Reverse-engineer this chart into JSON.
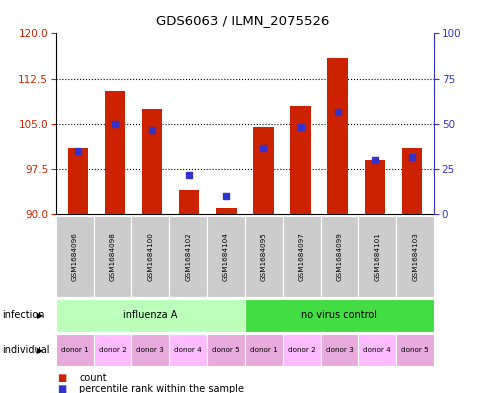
{
  "title": "GDS6063 / ILMN_2075526",
  "samples": [
    "GSM1684096",
    "GSM1684098",
    "GSM1684100",
    "GSM1684102",
    "GSM1684104",
    "GSM1684095",
    "GSM1684097",
    "GSM1684099",
    "GSM1684101",
    "GSM1684103"
  ],
  "red_bar_tops": [
    101.0,
    110.5,
    107.5,
    94.0,
    91.0,
    104.5,
    108.0,
    116.0,
    99.0,
    101.0
  ],
  "blue_square_y": [
    100.5,
    105.0,
    104.0,
    96.5,
    93.0,
    101.0,
    104.5,
    107.0,
    99.0,
    99.5
  ],
  "y_min": 90,
  "y_max": 120,
  "y_ticks_left": [
    90,
    97.5,
    105,
    112.5,
    120
  ],
  "y_ticks_right": [
    0,
    25,
    50,
    75,
    100
  ],
  "bar_color": "#cc2200",
  "blue_color": "#3333cc",
  "infection_groups": [
    {
      "label": "influenza A",
      "start": 0,
      "end": 5,
      "color": "#bbffbb"
    },
    {
      "label": "no virus control",
      "start": 5,
      "end": 10,
      "color": "#44dd44"
    }
  ],
  "individual_labels": [
    "donor 1",
    "donor 2",
    "donor 3",
    "donor 4",
    "donor 5",
    "donor 1",
    "donor 2",
    "donor 3",
    "donor 4",
    "donor 5"
  ],
  "individual_colors": [
    "#e8aadd",
    "#ffbbff",
    "#e8aadd",
    "#ffbbff",
    "#e8aadd",
    "#e8aadd",
    "#ffbbff",
    "#e8aadd",
    "#ffbbff",
    "#e8aadd"
  ],
  "legend_count_color": "#cc2200",
  "legend_pct_color": "#3333cc"
}
